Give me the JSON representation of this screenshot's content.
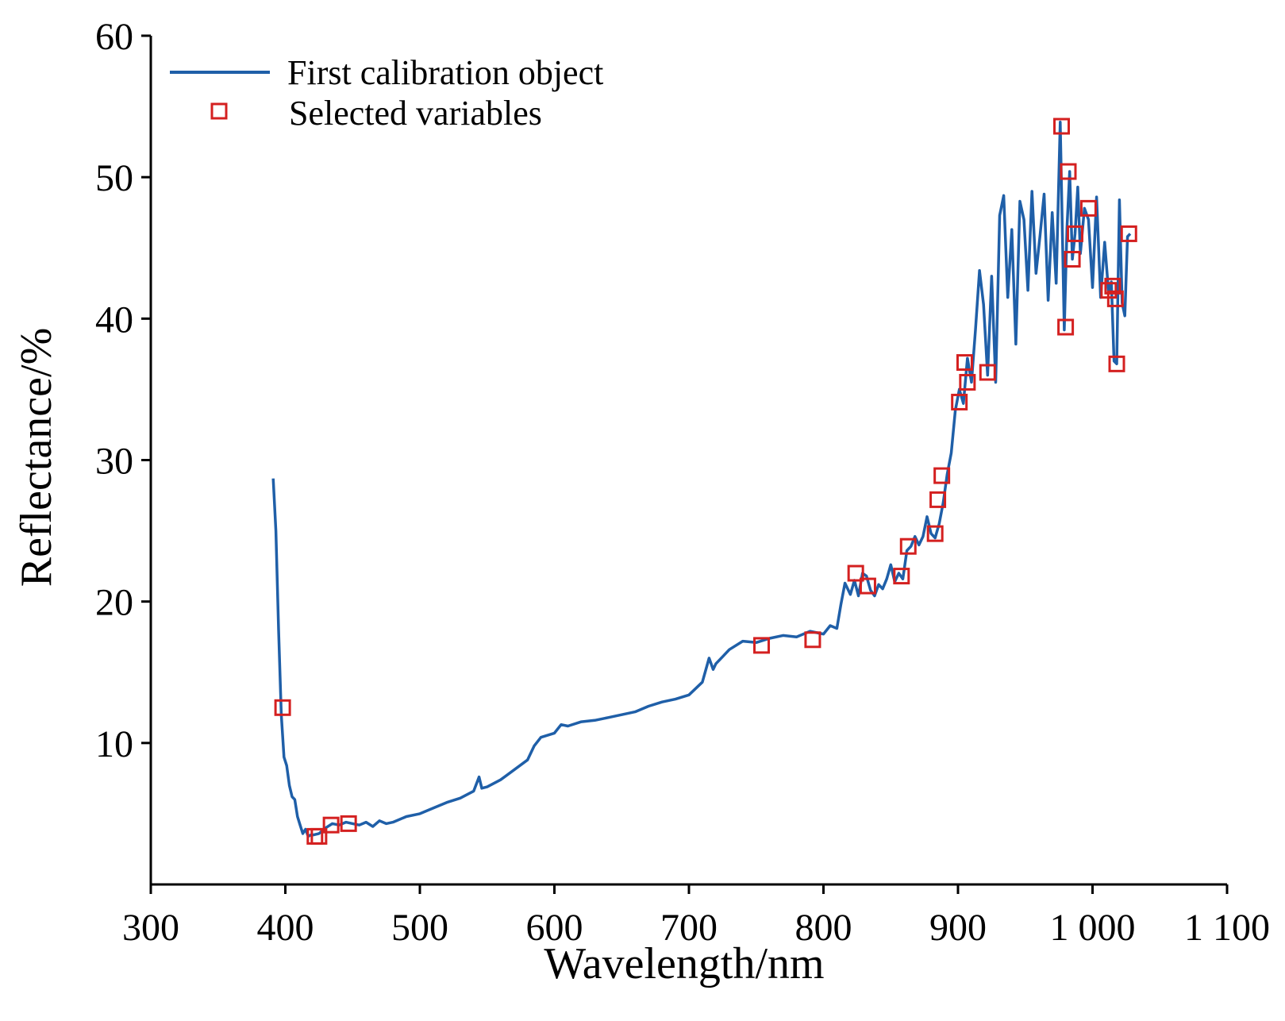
{
  "chart_data": {
    "type": "line",
    "xlabel": "Wavelength/nm",
    "ylabel": "Reflectance/%",
    "xlim": [
      300,
      1100
    ],
    "ylim": [
      0,
      60
    ],
    "x_ticks": [
      {
        "value": 300,
        "label": "300"
      },
      {
        "value": 400,
        "label": "400"
      },
      {
        "value": 500,
        "label": "500"
      },
      {
        "value": 600,
        "label": "600"
      },
      {
        "value": 700,
        "label": "700"
      },
      {
        "value": 800,
        "label": "800"
      },
      {
        "value": 900,
        "label": "900"
      },
      {
        "value": 1000,
        "label": "1 000"
      },
      {
        "value": 1100,
        "label": "1 100"
      }
    ],
    "y_ticks": [
      {
        "value": 10,
        "label": "10"
      },
      {
        "value": 20,
        "label": "20"
      },
      {
        "value": 30,
        "label": "30"
      },
      {
        "value": 40,
        "label": "40"
      },
      {
        "value": 50,
        "label": "50"
      },
      {
        "value": 60,
        "label": "60"
      }
    ],
    "grid": false,
    "legend_position": "top-left",
    "series": [
      {
        "name": "First calibration object",
        "kind": "line",
        "color": "#1f5fa8",
        "x": [
          391,
          393,
          395,
          397,
          399,
          401,
          403,
          405,
          407,
          409,
          411,
          413,
          415,
          417,
          419,
          421,
          425,
          430,
          435,
          440,
          445,
          450,
          455,
          460,
          465,
          470,
          475,
          480,
          490,
          500,
          510,
          520,
          530,
          540,
          544,
          546,
          550,
          560,
          570,
          580,
          585,
          590,
          600,
          605,
          610,
          620,
          630,
          640,
          650,
          660,
          670,
          680,
          690,
          700,
          710,
          715,
          718,
          720,
          725,
          730,
          740,
          750,
          760,
          770,
          780,
          790,
          800,
          805,
          810,
          813,
          816,
          820,
          823,
          826,
          829,
          832,
          835,
          838,
          841,
          844,
          847,
          850,
          853,
          856,
          859,
          862,
          865,
          868,
          871,
          874,
          877,
          880,
          883,
          886,
          889,
          892,
          895,
          898,
          901,
          904,
          907,
          910,
          913,
          916,
          919,
          922,
          925,
          928,
          931,
          934,
          937,
          940,
          943,
          946,
          949,
          952,
          955,
          958,
          961,
          964,
          967,
          970,
          973,
          976,
          979,
          981,
          983,
          985,
          987,
          989,
          991,
          994,
          997,
          1000,
          1003,
          1006,
          1009,
          1012,
          1014,
          1016,
          1018,
          1020,
          1022,
          1024,
          1026,
          1028
        ],
        "y": [
          28.7,
          25.0,
          18.0,
          12.0,
          9.0,
          8.4,
          7.0,
          6.2,
          6.0,
          4.8,
          4.2,
          3.6,
          3.9,
          3.4,
          3.5,
          3.5,
          3.6,
          4.0,
          4.3,
          4.2,
          4.4,
          4.3,
          4.2,
          4.4,
          4.1,
          4.5,
          4.3,
          4.4,
          4.8,
          5.0,
          5.4,
          5.8,
          6.1,
          6.6,
          7.6,
          6.8,
          6.9,
          7.4,
          8.1,
          8.8,
          9.8,
          10.4,
          10.7,
          11.3,
          11.2,
          11.5,
          11.6,
          11.8,
          12.0,
          12.2,
          12.6,
          12.9,
          13.1,
          13.4,
          14.3,
          16.0,
          15.2,
          15.6,
          16.1,
          16.6,
          17.2,
          17.1,
          17.4,
          17.6,
          17.5,
          17.9,
          17.7,
          18.3,
          18.1,
          19.8,
          21.3,
          20.5,
          21.5,
          20.4,
          22.0,
          21.8,
          20.8,
          20.4,
          21.2,
          20.9,
          21.6,
          22.6,
          21.4,
          22.0,
          21.6,
          23.6,
          23.9,
          24.6,
          24.0,
          24.6,
          26.0,
          24.8,
          24.5,
          25.5,
          27.0,
          29.0,
          30.5,
          33.5,
          35.0,
          34.0,
          37.2,
          35.5,
          39.2,
          43.4,
          41.0,
          36.0,
          43.0,
          35.5,
          47.3,
          48.7,
          41.5,
          46.3,
          38.2,
          48.3,
          47.0,
          42.0,
          49.0,
          43.2,
          45.9,
          48.8,
          41.3,
          47.5,
          42.5,
          53.9,
          39.2,
          46.4,
          50.4,
          44.2,
          46.0,
          49.3,
          44.6,
          47.8,
          47.0,
          42.2,
          48.6,
          41.5,
          45.4,
          41.8,
          42.6,
          37.0,
          36.8,
          48.4,
          41.1,
          40.2,
          45.8,
          46.0
        ]
      },
      {
        "name": "Selected variables",
        "kind": "marker",
        "marker": "square",
        "color": "#d42020",
        "x": [
          398,
          422,
          425,
          434,
          447,
          754,
          792,
          824,
          833,
          858,
          863,
          883,
          885,
          888,
          901,
          905,
          907,
          922,
          977,
          980,
          982,
          985,
          987,
          997,
          1012,
          1015,
          1017,
          1018,
          1027
        ],
        "y": [
          12.5,
          3.4,
          3.4,
          4.2,
          4.3,
          16.9,
          17.3,
          22.0,
          21.1,
          21.8,
          23.9,
          24.8,
          27.2,
          28.9,
          34.1,
          36.9,
          35.5,
          36.2,
          53.6,
          39.4,
          50.4,
          44.2,
          46.0,
          47.8,
          42.0,
          42.3,
          41.4,
          36.8,
          46.0
        ]
      }
    ]
  }
}
